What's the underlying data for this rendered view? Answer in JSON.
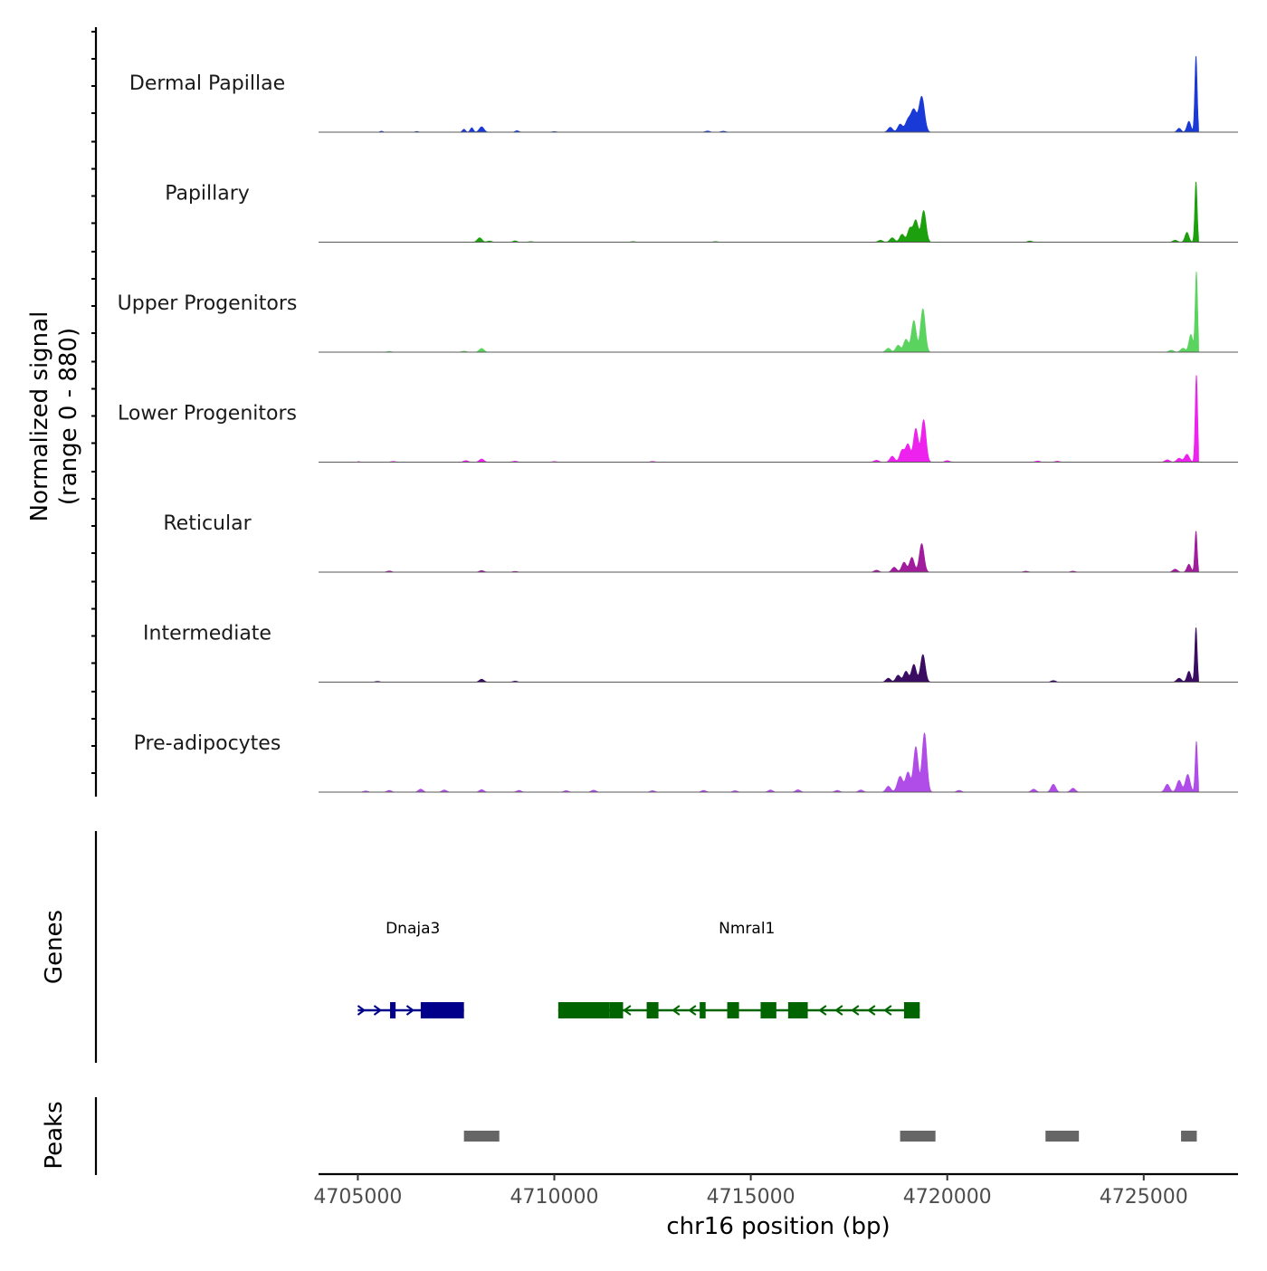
{
  "chart_data": {
    "type": "area",
    "title": "",
    "xlabel": "chr16 position (bp)",
    "ylabel_line1": "Normalized signal",
    "ylabel_line2": "(range 0 - 880)",
    "genes_label": "Genes",
    "peaks_label": "Peaks",
    "xlim": [
      4704000,
      4727400
    ],
    "ylim": [
      0,
      880
    ],
    "x_ticks": [
      4705000,
      4710000,
      4715000,
      4720000,
      4725000
    ],
    "x_tick_labels": [
      "4705000",
      "4710000",
      "4715000",
      "4720000",
      "4725000"
    ],
    "series": [
      {
        "name": "Dermal Papillae",
        "color": "#1a3ad8",
        "peaks": [
          [
            4705600,
            10,
            40
          ],
          [
            4706500,
            8,
            40
          ],
          [
            4707700,
            30,
            40
          ],
          [
            4707900,
            45,
            40
          ],
          [
            4708150,
            55,
            60
          ],
          [
            4709050,
            15,
            50
          ],
          [
            4710000,
            6,
            60
          ],
          [
            4713900,
            12,
            60
          ],
          [
            4714300,
            10,
            60
          ],
          [
            4718550,
            50,
            60
          ],
          [
            4718800,
            80,
            60
          ],
          [
            4719000,
            120,
            70
          ],
          [
            4719150,
            220,
            70
          ],
          [
            4719350,
            360,
            70
          ],
          [
            4725900,
            40,
            50
          ],
          [
            4726150,
            110,
            50
          ],
          [
            4726330,
            780,
            30
          ]
        ]
      },
      {
        "name": "Papillary",
        "color": "#1ca00e",
        "peaks": [
          [
            4708100,
            45,
            60
          ],
          [
            4708350,
            12,
            60
          ],
          [
            4709000,
            14,
            50
          ],
          [
            4709400,
            6,
            60
          ],
          [
            4712000,
            6,
            60
          ],
          [
            4714100,
            6,
            60
          ],
          [
            4718300,
            20,
            60
          ],
          [
            4718600,
            45,
            60
          ],
          [
            4718850,
            80,
            60
          ],
          [
            4719050,
            140,
            60
          ],
          [
            4719200,
            220,
            60
          ],
          [
            4719400,
            320,
            60
          ],
          [
            4722100,
            12,
            60
          ],
          [
            4725800,
            20,
            60
          ],
          [
            4726100,
            100,
            50
          ],
          [
            4726330,
            620,
            30
          ]
        ]
      },
      {
        "name": "Upper Progenitors",
        "color": "#5ad45e",
        "peaks": [
          [
            4705800,
            8,
            60
          ],
          [
            4707700,
            10,
            60
          ],
          [
            4708150,
            38,
            60
          ],
          [
            4718500,
            40,
            60
          ],
          [
            4718750,
            70,
            60
          ],
          [
            4718950,
            130,
            60
          ],
          [
            4719150,
            320,
            60
          ],
          [
            4719380,
            440,
            60
          ],
          [
            4725700,
            20,
            60
          ],
          [
            4726000,
            40,
            60
          ],
          [
            4726200,
            180,
            50
          ],
          [
            4726340,
            820,
            30
          ]
        ]
      },
      {
        "name": "Lower Progenitors",
        "color": "#ee22ee",
        "peaks": [
          [
            4705000,
            6,
            60
          ],
          [
            4705900,
            8,
            60
          ],
          [
            4707750,
            16,
            60
          ],
          [
            4708150,
            32,
            60
          ],
          [
            4709000,
            10,
            60
          ],
          [
            4710000,
            6,
            60
          ],
          [
            4712500,
            8,
            60
          ],
          [
            4718200,
            20,
            60
          ],
          [
            4718600,
            60,
            60
          ],
          [
            4718850,
            120,
            60
          ],
          [
            4719000,
            180,
            60
          ],
          [
            4719200,
            340,
            60
          ],
          [
            4719400,
            430,
            60
          ],
          [
            4720000,
            16,
            60
          ],
          [
            4722300,
            12,
            60
          ],
          [
            4722800,
            10,
            60
          ],
          [
            4725600,
            24,
            60
          ],
          [
            4725900,
            40,
            60
          ],
          [
            4726100,
            80,
            60
          ],
          [
            4726340,
            900,
            30
          ]
        ]
      },
      {
        "name": "Reticular",
        "color": "#a01c9c",
        "peaks": [
          [
            4705800,
            12,
            60
          ],
          [
            4708150,
            16,
            60
          ],
          [
            4709000,
            8,
            60
          ],
          [
            4718200,
            20,
            60
          ],
          [
            4718650,
            50,
            60
          ],
          [
            4718900,
            100,
            60
          ],
          [
            4719100,
            150,
            60
          ],
          [
            4719350,
            290,
            60
          ],
          [
            4722000,
            10,
            60
          ],
          [
            4723200,
            10,
            60
          ],
          [
            4725800,
            30,
            60
          ],
          [
            4726150,
            80,
            50
          ],
          [
            4726330,
            420,
            30
          ]
        ]
      },
      {
        "name": "Intermediate",
        "color": "#3a0c62",
        "peaks": [
          [
            4705500,
            8,
            60
          ],
          [
            4708150,
            30,
            60
          ],
          [
            4709000,
            10,
            60
          ],
          [
            4718500,
            40,
            60
          ],
          [
            4718750,
            70,
            60
          ],
          [
            4718950,
            110,
            60
          ],
          [
            4719150,
            180,
            60
          ],
          [
            4719380,
            280,
            60
          ],
          [
            4722700,
            16,
            60
          ],
          [
            4725900,
            40,
            60
          ],
          [
            4726150,
            110,
            50
          ],
          [
            4726330,
            560,
            30
          ]
        ]
      },
      {
        "name": "Pre-adipocytes",
        "color": "#b04ce8",
        "peaks": [
          [
            4705200,
            12,
            60
          ],
          [
            4705800,
            18,
            60
          ],
          [
            4706600,
            30,
            60
          ],
          [
            4707200,
            22,
            60
          ],
          [
            4708150,
            25,
            60
          ],
          [
            4709100,
            18,
            60
          ],
          [
            4710300,
            15,
            60
          ],
          [
            4711000,
            20,
            60
          ],
          [
            4712500,
            15,
            60
          ],
          [
            4713800,
            18,
            60
          ],
          [
            4714600,
            14,
            60
          ],
          [
            4715500,
            22,
            60
          ],
          [
            4716200,
            24,
            60
          ],
          [
            4717200,
            18,
            60
          ],
          [
            4717800,
            22,
            60
          ],
          [
            4718500,
            60,
            60
          ],
          [
            4718800,
            160,
            70
          ],
          [
            4719000,
            200,
            60
          ],
          [
            4719200,
            460,
            60
          ],
          [
            4719420,
            600,
            60
          ],
          [
            4720300,
            18,
            60
          ],
          [
            4722200,
            30,
            60
          ],
          [
            4722700,
            80,
            60
          ],
          [
            4723200,
            40,
            60
          ],
          [
            4725600,
            80,
            60
          ],
          [
            4725900,
            120,
            60
          ],
          [
            4726120,
            180,
            60
          ],
          [
            4726340,
            520,
            30
          ]
        ]
      }
    ],
    "genes": [
      {
        "name": "Dnaja3",
        "color": "#00008b",
        "strand": "+",
        "start": 4705000,
        "end": 4707700,
        "exons": [
          [
            4705820,
            4705960
          ],
          [
            4706600,
            4707700
          ]
        ],
        "label_x": 4706400
      },
      {
        "name": "Nmral1",
        "color": "#006400",
        "strand": "-",
        "start": 4710100,
        "end": 4719300,
        "exons": [
          [
            4710100,
            4711400
          ],
          [
            4711400,
            4711750
          ],
          [
            4712350,
            4712650
          ],
          [
            4713700,
            4713850
          ],
          [
            4714400,
            4714700
          ],
          [
            4715250,
            4715650
          ],
          [
            4715950,
            4716450
          ],
          [
            4718900,
            4719300
          ]
        ],
        "label_x": 4714900
      }
    ],
    "peaks_track": [
      [
        4707700,
        4708600
      ],
      [
        4718800,
        4719700
      ],
      [
        4722500,
        4723350
      ],
      [
        4725950,
        4726350
      ]
    ]
  }
}
